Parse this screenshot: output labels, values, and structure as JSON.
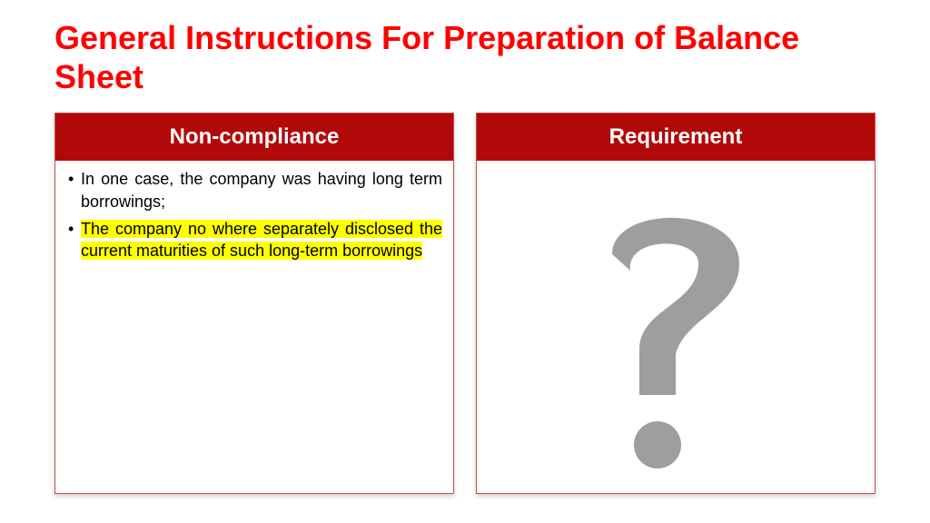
{
  "title": {
    "text": "General Instructions For Preparation of Balance Sheet",
    "color": "#ff0000"
  },
  "panels": {
    "header_bg": "#b10909",
    "header_fg": "#ffffff",
    "border_color": "#c84d4d",
    "left": {
      "header": "Non-compliance",
      "bullets": [
        {
          "text": "In one case, the company was having long term borrowings;",
          "highlight": false
        },
        {
          "text": "The company no where separately disclosed the current maturities of such long-term borrowings",
          "highlight": true
        }
      ],
      "highlight_color": "#ffff00",
      "text_color": "#000000"
    },
    "right": {
      "header": "Requirement",
      "icon_color": "#9e9e9e"
    }
  }
}
